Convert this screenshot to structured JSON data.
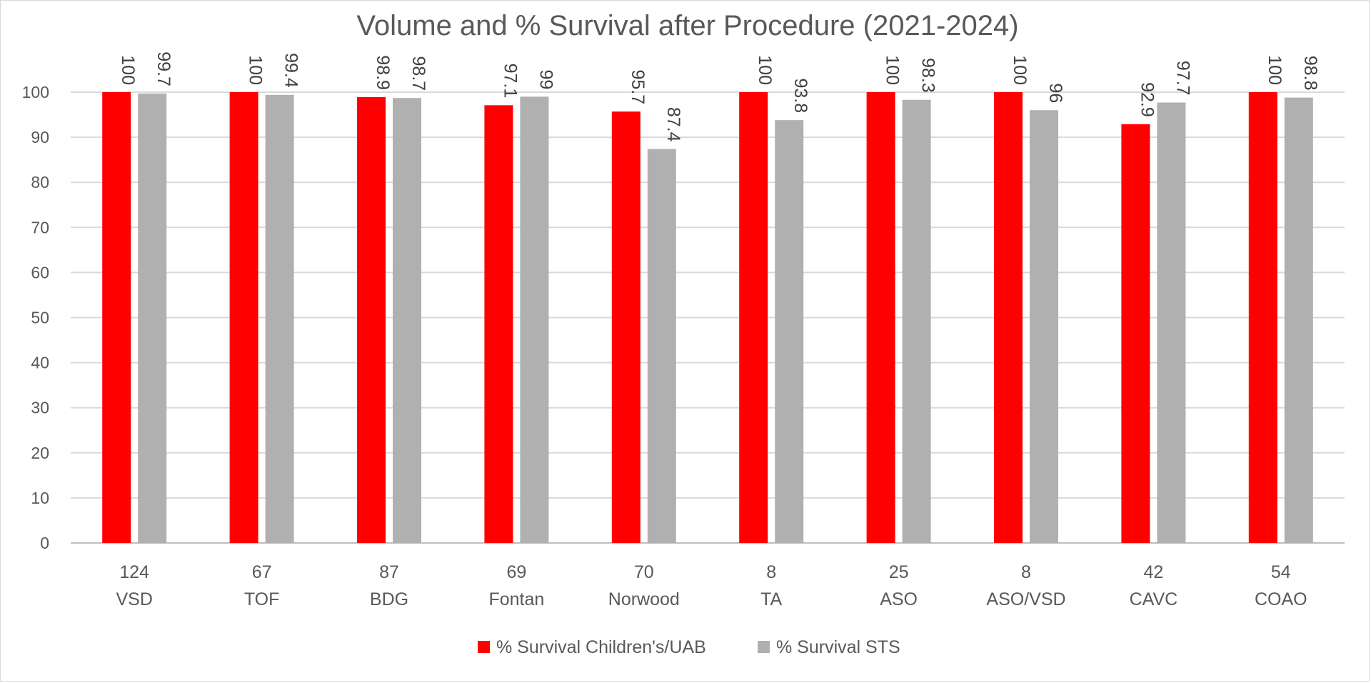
{
  "chart_data": {
    "type": "bar",
    "title": "Volume and % Survival after Procedure (2021-2024)",
    "xlabel": "",
    "ylabel": "",
    "ylim": [
      0,
      100
    ],
    "yticks": [
      0,
      10,
      20,
      30,
      40,
      50,
      60,
      70,
      80,
      90,
      100
    ],
    "grid": true,
    "legend_position": "bottom",
    "categories": [
      {
        "volume": "124",
        "name": "VSD"
      },
      {
        "volume": "67",
        "name": "TOF"
      },
      {
        "volume": "87",
        "name": "BDG"
      },
      {
        "volume": "69",
        "name": "Fontan"
      },
      {
        "volume": "70",
        "name": "Norwood"
      },
      {
        "volume": "8",
        "name": "TA"
      },
      {
        "volume": "25",
        "name": "ASO"
      },
      {
        "volume": "8",
        "name": "ASO/VSD"
      },
      {
        "volume": "42",
        "name": "CAVC"
      },
      {
        "volume": "54",
        "name": "COAO"
      }
    ],
    "series": [
      {
        "name": "% Survival Children's/UAB",
        "color": "#ff0000",
        "values": [
          100,
          100,
          98.9,
          97.1,
          95.7,
          100,
          100,
          100,
          92.9,
          100
        ],
        "labels": [
          "100",
          "100",
          "98.9",
          "97.1",
          "95.7",
          "100",
          "100",
          "100",
          "92.9",
          "100"
        ]
      },
      {
        "name": "% Survival STS",
        "color": "#b0b0b0",
        "values": [
          99.7,
          99.4,
          98.7,
          99,
          87.4,
          93.8,
          98.3,
          96,
          97.7,
          98.8
        ],
        "labels": [
          "99.7",
          "99.4",
          "98.7",
          "99",
          "87.4",
          "93.8",
          "98.3",
          "96",
          "97.7",
          "98.8"
        ]
      }
    ]
  }
}
